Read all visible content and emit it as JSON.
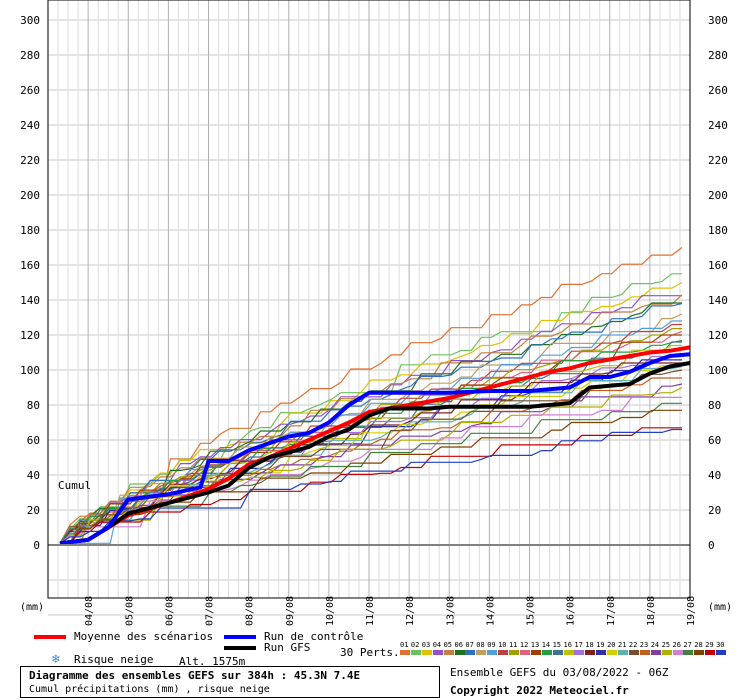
{
  "chart_data": {
    "type": "line",
    "ylim": [
      0,
      300
    ],
    "yticks": [
      0,
      20,
      40,
      60,
      80,
      100,
      120,
      140,
      160,
      180,
      200,
      220,
      240,
      260,
      280,
      300
    ],
    "x_dates": [
      "04/08",
      "05/08",
      "06/08",
      "07/08",
      "08/08",
      "09/08",
      "10/08",
      "11/08",
      "12/08",
      "13/08",
      "14/08",
      "15/08",
      "16/08",
      "17/08",
      "18/08",
      "19/08"
    ],
    "unit_label": "(mm)",
    "cumul_label": "Cumul",
    "x_start_day": 3.3,
    "x_end_day": 19.0,
    "series": [
      {
        "name": "Moyenne des scénarios",
        "color": "#ff0000",
        "width": 4,
        "days": [
          3.3,
          4.0,
          4.5,
          5.0,
          6.0,
          7.0,
          7.5,
          8.0,
          8.5,
          9.0,
          9.5,
          10.0,
          10.5,
          11.0,
          11.5,
          12.0,
          12.5,
          13.0,
          13.5,
          14.0,
          14.5,
          15.0,
          15.5,
          16.0,
          16.5,
          17.0,
          17.5,
          18.0,
          18.5,
          19.0
        ],
        "values": [
          1,
          3,
          10,
          17,
          24,
          32,
          38,
          46,
          50,
          55,
          60,
          65,
          70,
          76,
          78,
          80,
          82,
          84,
          87,
          90,
          93,
          96,
          99,
          101,
          104,
          106,
          108,
          110,
          111,
          113
        ]
      },
      {
        "name": "Run de contrôle",
        "color": "#0000ff",
        "width": 4,
        "days": [
          3.3,
          4.0,
          4.5,
          5.0,
          6.0,
          6.8,
          7.0,
          7.5,
          8.0,
          8.5,
          9.0,
          9.5,
          10.0,
          10.5,
          11.0,
          11.5,
          12.0,
          13.0,
          14.0,
          15.0,
          16.0,
          16.5,
          17.0,
          17.5,
          18.0,
          18.5,
          19.0
        ],
        "values": [
          1,
          3,
          10,
          26,
          29,
          33,
          48,
          48,
          54,
          58,
          62,
          64,
          70,
          80,
          87,
          87,
          87,
          87,
          88,
          88,
          90,
          96,
          96,
          99,
          104,
          108,
          109
        ]
      },
      {
        "name": "Run GFS",
        "color": "#000000",
        "width": 4,
        "days": [
          3.3,
          4.0,
          4.5,
          5.0,
          6.0,
          7.0,
          7.5,
          8.0,
          8.5,
          9.0,
          9.5,
          10.0,
          10.5,
          11.0,
          11.5,
          12.0,
          12.5,
          13.0,
          14.0,
          15.0,
          15.5,
          16.0,
          16.5,
          17.0,
          17.5,
          18.0,
          18.5,
          19.0
        ],
        "values": [
          1,
          3,
          10,
          18,
          24,
          30,
          34,
          44,
          50,
          53,
          56,
          62,
          66,
          74,
          78,
          78,
          78,
          79,
          79,
          79,
          80,
          81,
          90,
          91,
          92,
          98,
          102,
          104
        ]
      }
    ],
    "perturbations": {
      "count_label": "30 Perts.",
      "labels": [
        "01",
        "02",
        "03",
        "04",
        "05",
        "06",
        "07",
        "08",
        "09",
        "10",
        "11",
        "12",
        "13",
        "14",
        "15",
        "16",
        "17",
        "18",
        "19",
        "20",
        "21",
        "22",
        "23",
        "24",
        "25",
        "26",
        "27",
        "28",
        "29",
        "30"
      ],
      "colors": [
        "#e07030",
        "#6cc060",
        "#e0c000",
        "#9050d0",
        "#c08040",
        "#207020",
        "#3070c0",
        "#c0a060",
        "#50a0e0",
        "#c04040",
        "#a0a000",
        "#e06080",
        "#a04000",
        "#20a040",
        "#407090",
        "#c0c000",
        "#a070e0",
        "#802020",
        "#3030a0",
        "#d0d000",
        "#60b0b0",
        "#705030",
        "#c06020",
        "#8040a0",
        "#b0b000",
        "#d080d0",
        "#408040",
        "#804000",
        "#c00000",
        "#2040c0"
      ],
      "finals": [
        170,
        155,
        150,
        145,
        143,
        140,
        138,
        132,
        128,
        126,
        124,
        122,
        120,
        118,
        116,
        114,
        110,
        108,
        106,
        104,
        102,
        100,
        96,
        92,
        90,
        85,
        81,
        77,
        67,
        66
      ]
    },
    "legend": [
      {
        "label": "Moyenne des scénarios",
        "color": "#ff0000"
      },
      {
        "label": "Run de contrôle",
        "color": "#0000ff"
      },
      {
        "label": "Run GFS",
        "color": "#000000"
      }
    ]
  },
  "footer": {
    "snow_label": "Risque neige",
    "alt_label": "Alt. 1575m",
    "title": "Diagramme des ensembles GEFS sur 384h : 45.3N 7.4E",
    "subtitle": "Cumul précipitations (mm) , risque neige",
    "ensemble_info": "Ensemble GEFS du 03/08/2022 - 06Z",
    "copyright": "Copyright 2022 Meteociel.fr"
  },
  "icons": {
    "snow": "snowflake-icon"
  }
}
